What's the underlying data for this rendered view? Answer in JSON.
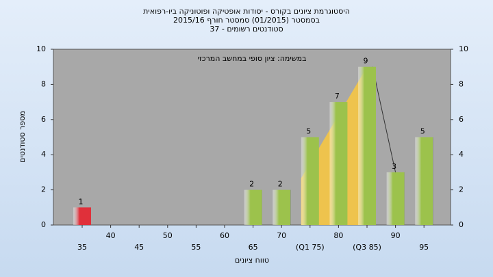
{
  "chart_data": {
    "type": "bar",
    "title": [
      "היסטוגרמת ציונים בקורס - יסודות אופטיקה ופוטוניקה ביו-רפואית",
      "בסמסטר  (01/2015)  סמסטר חורף 2015/16",
      "סטודנטים רשומים - 37"
    ],
    "subtitle": "במשימה: ציון סופי במחשב המרכזי",
    "x_label": "טווח ציונים",
    "y_label": "מספר סטודנטים",
    "categories": [
      "35",
      "40",
      "45",
      "50",
      "55",
      "60",
      "65",
      "70",
      "(Q1 75)",
      "80",
      "(Q3 85)",
      "90",
      "95"
    ],
    "values": [
      1,
      0,
      0,
      0,
      0,
      0,
      2,
      2,
      5,
      7,
      9,
      3,
      5
    ],
    "colors": [
      "#e0303a",
      "#9cc24c",
      "#9cc24c",
      "#9cc24c",
      "#9cc24c",
      "#9cc24c",
      "#9cc24c",
      "#9cc24c",
      "#9cc24c",
      "#9cc24c",
      "#9cc24c",
      "#9cc24c",
      "#9cc24c"
    ],
    "ylim": [
      0,
      10
    ],
    "yticks": [
      0,
      2,
      4,
      6,
      8,
      10
    ],
    "y2lim": [
      0,
      10
    ],
    "y2ticks": [
      0,
      2,
      4,
      6,
      8,
      10
    ]
  }
}
